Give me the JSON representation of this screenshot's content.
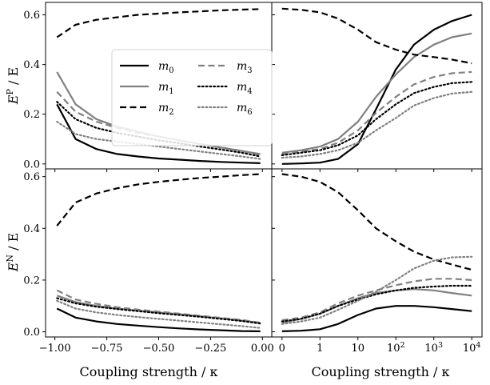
{
  "figure": {
    "xlabel_left": "Coupling strength / κ",
    "xlabel_right": "Coupling strength / κ",
    "ylabel_top": {
      "main": "E",
      "sup": "P",
      "tail": " / E"
    },
    "ylabel_bottom": {
      "main": "E",
      "sup": "N",
      "tail": " / E"
    }
  },
  "chart_data": [
    {
      "panel": "top-left",
      "type": "line",
      "ylabel": "E^P / E",
      "xlim": [
        -1.0,
        0.0
      ],
      "ylim": [
        0.0,
        0.6
      ],
      "x_ticks": [
        "−1.00",
        "−0.75",
        "−0.50",
        "−0.25",
        "0.00"
      ],
      "y_ticks": [
        "0.0",
        "0.2",
        "0.4",
        "0.6"
      ],
      "legend": {
        "placement": "upper-middle",
        "columns": 2
      },
      "x": [
        -0.99,
        -0.9,
        -0.8,
        -0.7,
        -0.6,
        -0.5,
        -0.4,
        -0.3,
        -0.2,
        -0.1,
        -0.01
      ],
      "series": [
        {
          "name": "m0",
          "values": [
            0.24,
            0.1,
            0.06,
            0.04,
            0.03,
            0.022,
            0.017,
            0.012,
            0.008,
            0.005,
            0.003
          ]
        },
        {
          "name": "m1",
          "values": [
            0.37,
            0.24,
            0.18,
            0.15,
            0.13,
            0.11,
            0.095,
            0.08,
            0.066,
            0.052,
            0.04
          ]
        },
        {
          "name": "m2",
          "values": [
            0.51,
            0.56,
            0.58,
            0.59,
            0.6,
            0.605,
            0.61,
            0.614,
            0.618,
            0.621,
            0.623
          ]
        },
        {
          "name": "m3",
          "values": [
            0.29,
            0.21,
            0.17,
            0.145,
            0.125,
            0.11,
            0.095,
            0.08,
            0.066,
            0.052,
            0.035
          ]
        },
        {
          "name": "m4",
          "values": [
            0.25,
            0.18,
            0.145,
            0.125,
            0.11,
            0.095,
            0.083,
            0.07,
            0.058,
            0.045,
            0.03
          ]
        },
        {
          "name": "m6",
          "values": [
            0.17,
            0.12,
            0.1,
            0.09,
            0.08,
            0.07,
            0.06,
            0.05,
            0.04,
            0.03,
            0.02
          ]
        }
      ]
    },
    {
      "panel": "top-right",
      "type": "line",
      "xscale": "symlog",
      "xlim": [
        0,
        10000
      ],
      "ylim": [
        0.0,
        0.6
      ],
      "x_ticks": [
        "0",
        "1",
        "10",
        "10^2",
        "10^3",
        "10^4"
      ],
      "x": [
        0,
        0.5,
        1,
        3,
        10,
        30,
        100,
        300,
        1000,
        3000,
        10000
      ],
      "series": [
        {
          "name": "m0",
          "values": [
            0.0,
            0.002,
            0.005,
            0.02,
            0.08,
            0.22,
            0.38,
            0.48,
            0.54,
            0.575,
            0.6
          ]
        },
        {
          "name": "m1",
          "values": [
            0.045,
            0.055,
            0.07,
            0.1,
            0.17,
            0.27,
            0.36,
            0.43,
            0.48,
            0.51,
            0.525
          ]
        },
        {
          "name": "m2",
          "values": [
            0.625,
            0.62,
            0.61,
            0.585,
            0.54,
            0.49,
            0.46,
            0.44,
            0.43,
            0.42,
            0.405
          ]
        },
        {
          "name": "m3",
          "values": [
            0.04,
            0.05,
            0.06,
            0.085,
            0.135,
            0.205,
            0.27,
            0.32,
            0.35,
            0.365,
            0.37
          ]
        },
        {
          "name": "m4",
          "values": [
            0.035,
            0.045,
            0.055,
            0.075,
            0.115,
            0.18,
            0.24,
            0.285,
            0.31,
            0.325,
            0.33
          ]
        },
        {
          "name": "m6",
          "values": [
            0.025,
            0.03,
            0.04,
            0.055,
            0.085,
            0.135,
            0.185,
            0.235,
            0.265,
            0.283,
            0.29
          ]
        }
      ]
    },
    {
      "panel": "bottom-left",
      "type": "line",
      "ylabel": "E^N / E",
      "xlim": [
        -1.0,
        0.0
      ],
      "ylim": [
        0.0,
        0.6
      ],
      "x_ticks": [
        "−1.00",
        "−0.75",
        "−0.50",
        "−0.25",
        "0.00"
      ],
      "y_ticks": [
        "0.0",
        "0.2",
        "0.4",
        "0.6"
      ],
      "x": [
        -0.99,
        -0.9,
        -0.8,
        -0.7,
        -0.6,
        -0.5,
        -0.4,
        -0.3,
        -0.2,
        -0.1,
        -0.01
      ],
      "series": [
        {
          "name": "m0",
          "values": [
            0.09,
            0.055,
            0.04,
            0.03,
            0.024,
            0.018,
            0.013,
            0.009,
            0.006,
            0.003,
            0.002
          ]
        },
        {
          "name": "m1",
          "values": [
            0.14,
            0.115,
            0.1,
            0.09,
            0.082,
            0.075,
            0.068,
            0.06,
            0.052,
            0.043,
            0.035
          ]
        },
        {
          "name": "m2",
          "values": [
            0.41,
            0.5,
            0.535,
            0.555,
            0.57,
            0.58,
            0.588,
            0.595,
            0.6,
            0.606,
            0.61
          ]
        },
        {
          "name": "m3",
          "values": [
            0.16,
            0.125,
            0.108,
            0.095,
            0.086,
            0.078,
            0.07,
            0.062,
            0.054,
            0.046,
            0.035
          ]
        },
        {
          "name": "m4",
          "values": [
            0.13,
            0.11,
            0.097,
            0.088,
            0.08,
            0.072,
            0.065,
            0.058,
            0.05,
            0.042,
            0.032
          ]
        },
        {
          "name": "m6",
          "values": [
            0.12,
            0.09,
            0.075,
            0.065,
            0.057,
            0.05,
            0.043,
            0.036,
            0.029,
            0.022,
            0.015
          ]
        }
      ]
    },
    {
      "panel": "bottom-right",
      "type": "line",
      "xscale": "symlog",
      "xlim": [
        0,
        10000
      ],
      "ylim": [
        0.0,
        0.6
      ],
      "x_ticks": [
        "0",
        "1",
        "10",
        "10^2",
        "10^3",
        "10^4"
      ],
      "x": [
        0,
        0.5,
        1,
        3,
        10,
        30,
        100,
        300,
        1000,
        3000,
        10000
      ],
      "series": [
        {
          "name": "m0",
          "values": [
            0.002,
            0.004,
            0.01,
            0.03,
            0.065,
            0.09,
            0.1,
            0.1,
            0.095,
            0.088,
            0.08
          ]
        },
        {
          "name": "m1",
          "values": [
            0.035,
            0.05,
            0.07,
            0.1,
            0.13,
            0.15,
            0.16,
            0.165,
            0.16,
            0.15,
            0.14
          ]
        },
        {
          "name": "m2",
          "values": [
            0.61,
            0.6,
            0.58,
            0.54,
            0.47,
            0.4,
            0.35,
            0.31,
            0.28,
            0.26,
            0.24
          ]
        },
        {
          "name": "m3",
          "values": [
            0.045,
            0.055,
            0.075,
            0.11,
            0.14,
            0.16,
            0.18,
            0.195,
            0.205,
            0.205,
            0.2
          ]
        },
        {
          "name": "m4",
          "values": [
            0.04,
            0.05,
            0.07,
            0.1,
            0.125,
            0.145,
            0.16,
            0.17,
            0.175,
            0.178,
            0.178
          ]
        },
        {
          "name": "m6",
          "values": [
            0.03,
            0.04,
            0.055,
            0.085,
            0.12,
            0.155,
            0.2,
            0.245,
            0.275,
            0.288,
            0.29
          ]
        }
      ]
    }
  ],
  "styles": {
    "m0": {
      "color": "#000000",
      "dash": "solid"
    },
    "m1": {
      "color": "#808080",
      "dash": "solid"
    },
    "m2": {
      "color": "#000000",
      "dash": "dashed"
    },
    "m3": {
      "color": "#808080",
      "dash": "dashed"
    },
    "m4": {
      "color": "#000000",
      "dash": "dotted"
    },
    "m6": {
      "color": "#808080",
      "dash": "dotted"
    }
  }
}
